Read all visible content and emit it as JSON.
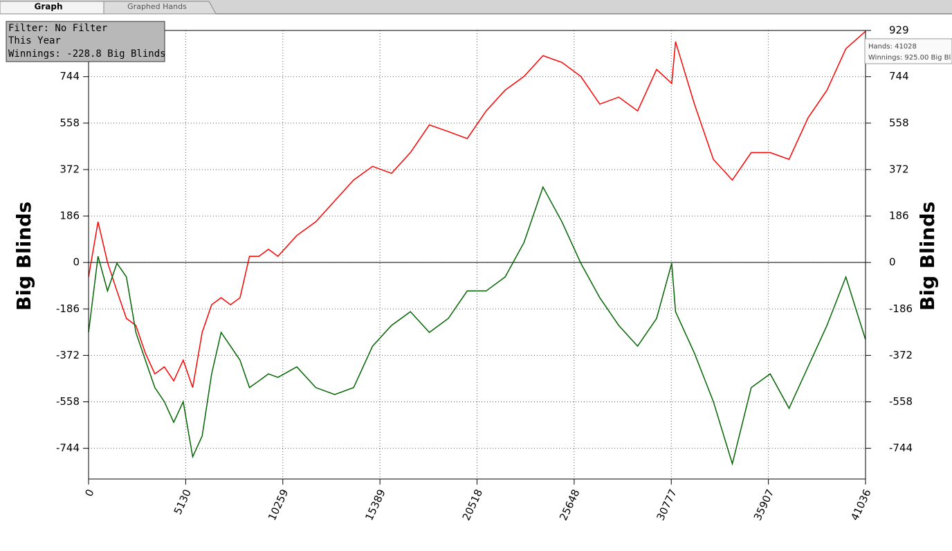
{
  "tabs": [
    "Graph",
    "Graphed Hands"
  ],
  "info_box": {
    "lines": [
      "Filter: No Filter",
      "This Year",
      "Winnings: -228.8 Big Blinds"
    ]
  },
  "tooltip": {
    "lines": [
      "Hands: 41028",
      "Winnings: 925.00 Big Bl"
    ]
  },
  "chart_data": {
    "type": "line",
    "ylabel": "Big Blinds",
    "y2label": "Big Blinds",
    "x": [
      0,
      500,
      1000,
      1500,
      2000,
      2500,
      3000,
      3500,
      4000,
      4500,
      5000,
      5500,
      6000,
      6500,
      7000,
      7500,
      8000,
      8500,
      9000,
      9500,
      10000,
      11000,
      12000,
      13000,
      14000,
      15000,
      16000,
      17000,
      18000,
      19000,
      20000,
      21000,
      22000,
      23000,
      24000,
      25000,
      26000,
      27000,
      28000,
      29000,
      30000,
      30800,
      31000,
      32000,
      33000,
      34000,
      35000,
      36000,
      37000,
      38000,
      39000,
      40000,
      41028
    ],
    "series": [
      {
        "color": "#ff0000",
        "values": [
          -58,
          163,
          0,
          -114,
          -224,
          -252,
          -363,
          -446,
          -418,
          -474,
          -391,
          -501,
          -280,
          -169,
          -141,
          -169,
          -141,
          25,
          25,
          53,
          25,
          108,
          163,
          247,
          330,
          385,
          357,
          440,
          551,
          524,
          496,
          607,
          690,
          745,
          828,
          801,
          745,
          634,
          662,
          607,
          773,
          717,
          884,
          634,
          413,
          330,
          440,
          440,
          413,
          579,
          690,
          856,
          925
        ]
      },
      {
        "color": "#006400",
        "values": [
          -280,
          25,
          -114,
          -3,
          -58,
          -280,
          -391,
          -501,
          -557,
          -640,
          -557,
          -778,
          -695,
          -446,
          -280,
          -335,
          -391,
          -501,
          -474,
          -446,
          -460,
          -418,
          -501,
          -529,
          -501,
          -335,
          -252,
          -197,
          -280,
          -224,
          -114,
          -114,
          -58,
          80,
          302,
          163,
          -3,
          -141,
          -252,
          -335,
          -224,
          -3,
          -197,
          -363,
          -557,
          -806,
          -501,
          -446,
          -584,
          -418,
          -252,
          -58,
          -307
        ]
      }
    ],
    "xlim": [
      0,
      41036
    ],
    "xticks": [
      0,
      5130,
      10259,
      15389,
      20518,
      25648,
      30777,
      35907,
      41036
    ],
    "ylim": [
      -867,
      929
    ],
    "yticks": [
      -744,
      -558,
      -372,
      -186,
      0,
      186,
      372,
      558,
      744,
      929
    ],
    "grid": true
  }
}
